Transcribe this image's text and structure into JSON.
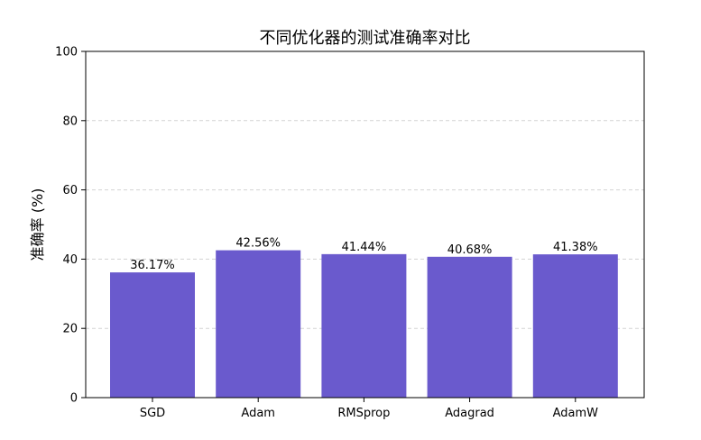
{
  "chart_data": {
    "type": "bar",
    "title": "不同优化器的测试准确率对比",
    "xlabel": "",
    "ylabel": "准确率 (%)",
    "categories": [
      "SGD",
      "Adam",
      "RMSprop",
      "Adagrad",
      "AdamW"
    ],
    "values": [
      36.17,
      42.56,
      41.44,
      40.68,
      41.38
    ],
    "value_labels": [
      "36.17%",
      "42.56%",
      "41.44%",
      "40.68%",
      "41.38%"
    ],
    "ylim": [
      0,
      100
    ],
    "yticks": [
      0,
      20,
      40,
      60,
      80,
      100
    ],
    "ytick_labels": [
      "0",
      "20",
      "40",
      "60",
      "80",
      "100"
    ],
    "grid": "y-dashed",
    "bar_color": "#6a5acd"
  }
}
